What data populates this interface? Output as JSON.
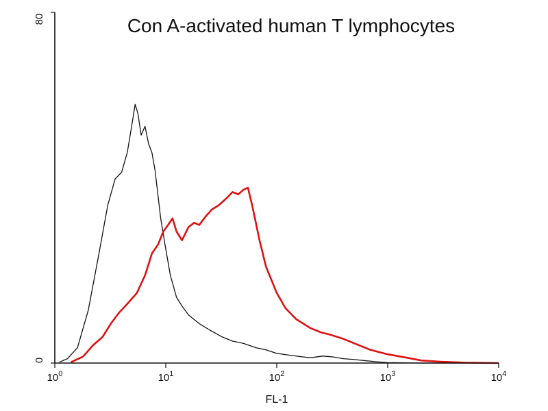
{
  "chart_data": {
    "type": "line",
    "title": "Con A-activated human T lymphocytes",
    "xlabel": "FL-1",
    "ylabel": "",
    "x_scale": "log",
    "xlim": [
      1,
      10000
    ],
    "ylim": [
      0,
      80
    ],
    "x_ticks": [
      {
        "value": 1,
        "base": "10",
        "exp": "0"
      },
      {
        "value": 10,
        "base": "10",
        "exp": "1"
      },
      {
        "value": 100,
        "base": "10",
        "exp": "2"
      },
      {
        "value": 1000,
        "base": "10",
        "exp": "3"
      },
      {
        "value": 10000,
        "base": "10",
        "exp": "4"
      }
    ],
    "y_ticks": [
      {
        "value": 0,
        "label": "0"
      },
      {
        "value": 80,
        "label": "80"
      }
    ],
    "grid": false,
    "legend": "none",
    "series": [
      {
        "color": "#111111",
        "x": [
          1.1,
          1.3,
          1.6,
          2.0,
          2.5,
          3.0,
          3.5,
          4.0,
          4.5,
          5.0,
          5.3,
          5.6,
          6.0,
          6.5,
          7.0,
          7.5,
          8.0,
          9.0,
          10.0,
          11.0,
          12.5,
          14.0,
          16.0,
          20.0,
          25.0,
          32.0,
          40.0,
          50.0,
          65.0,
          80.0,
          100.0,
          130.0,
          160.0,
          200.0,
          260.0,
          320.0,
          400.0,
          500.0,
          650.0,
          800.0,
          1000.0,
          2000.0,
          5000.0,
          10000.0
        ],
        "y": [
          0.2,
          1.0,
          3.5,
          12.0,
          25.0,
          36.0,
          42.0,
          43.5,
          48.0,
          55.0,
          59.0,
          57.0,
          52.0,
          54.0,
          50.0,
          48.0,
          44.0,
          33.0,
          26.0,
          20.0,
          15.0,
          13.0,
          11.0,
          9.0,
          7.5,
          6.0,
          5.0,
          4.5,
          3.5,
          3.0,
          2.2,
          1.8,
          1.5,
          1.2,
          1.6,
          1.4,
          1.0,
          0.8,
          0.5,
          0.3,
          0.1,
          0.0,
          0.0,
          0.0
        ]
      },
      {
        "color": "#dd1111",
        "x": [
          1.4,
          1.8,
          2.2,
          2.7,
          3.2,
          3.8,
          4.5,
          5.5,
          6.5,
          7.5,
          8.5,
          9.5,
          10.5,
          11.5,
          12.5,
          14.0,
          16.0,
          18.0,
          20.0,
          23.0,
          26.0,
          30.0,
          35.0,
          40.0,
          45.0,
          50.0,
          55.0,
          60.0,
          70.0,
          80.0,
          100.0,
          120.0,
          150.0,
          200.0,
          250.0,
          300.0,
          400.0,
          500.0,
          700.0,
          1000.0,
          1500.0,
          2000.0,
          3000.0,
          5000.0,
          10000.0
        ],
        "y": [
          0.2,
          1.5,
          4.0,
          6.0,
          9.0,
          11.5,
          13.5,
          16.0,
          20.0,
          25.0,
          27.0,
          30.0,
          31.5,
          33.0,
          30.0,
          28.0,
          31.0,
          32.0,
          31.5,
          33.5,
          35.0,
          36.0,
          37.5,
          39.0,
          38.5,
          39.5,
          40.0,
          36.0,
          28.0,
          22.0,
          16.0,
          12.5,
          10.0,
          8.0,
          7.0,
          6.5,
          5.5,
          4.5,
          3.0,
          2.0,
          1.2,
          0.6,
          0.3,
          0.1,
          0.0
        ]
      }
    ]
  }
}
